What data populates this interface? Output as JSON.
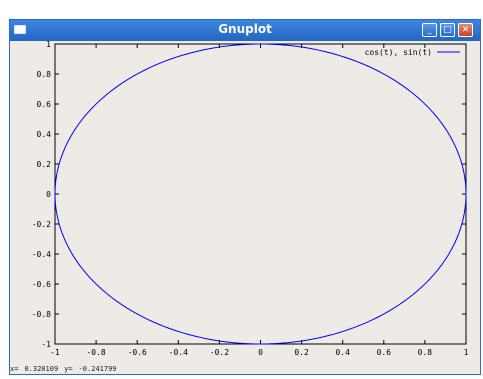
{
  "window": {
    "title": "Gnuplot",
    "buttons": {
      "minimize": "_",
      "maximize": "□",
      "close": "✕"
    }
  },
  "status": {
    "x_label": "x=",
    "x_value": "0.320109",
    "y_label": "y=",
    "y_value": "-0.241799"
  },
  "chart_data": {
    "type": "line",
    "title": "",
    "xlabel": "",
    "ylabel": "",
    "xlim": [
      -1,
      1
    ],
    "ylim": [
      -1,
      1
    ],
    "grid": false,
    "legend_position": "top-right",
    "x_ticks": [
      "-1",
      "-0.8",
      "-0.6",
      "-0.4",
      "-0.2",
      "0",
      "0.2",
      "0.4",
      "0.6",
      "0.8",
      "1"
    ],
    "y_ticks": [
      "-1",
      "-0.8",
      "-0.6",
      "-0.4",
      "-0.2",
      "0",
      "0.2",
      "0.4",
      "0.6",
      "0.8",
      "1"
    ],
    "series": [
      {
        "name": "cos(t), sin(t)",
        "color": "#0000ff",
        "parametric": {
          "x": "cos(t)",
          "y": "sin(t)",
          "t_range": [
            0,
            6.283
          ]
        }
      }
    ]
  }
}
